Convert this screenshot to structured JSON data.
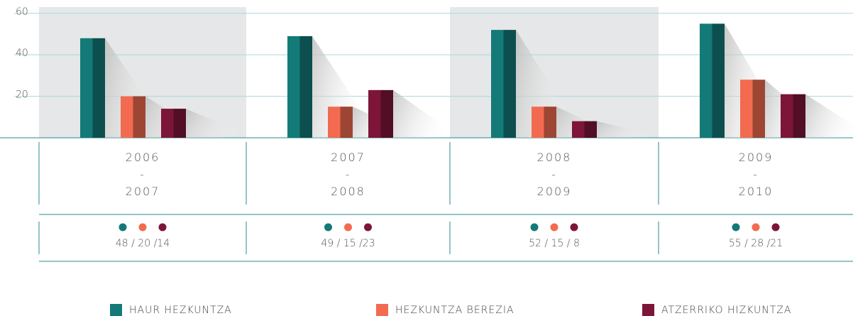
{
  "chart_data": {
    "type": "bar",
    "categories": [
      "2006 - 2007",
      "2007 - 2008",
      "2008 - 2009",
      "2009 - 2010"
    ],
    "series": [
      {
        "name": "HAUR HEZKUNTZA",
        "color": "#137a78",
        "values": [
          48,
          49,
          52,
          55
        ]
      },
      {
        "name": "HEZKUNTZA BEREZIA",
        "color": "#f26b50",
        "values": [
          20,
          15,
          15,
          28
        ]
      },
      {
        "name": "ATZERRIKO HIZKUNTZA",
        "color": "#7d1538",
        "values": [
          14,
          23,
          8,
          21
        ]
      }
    ],
    "group_labels": [
      "48 / 20 /14",
      "49 / 15 /23",
      "52 / 15 / 8",
      "55 / 28 /21"
    ],
    "ylim": [
      0,
      63
    ],
    "yticks": [
      20,
      40,
      60
    ],
    "grid": true
  }
}
